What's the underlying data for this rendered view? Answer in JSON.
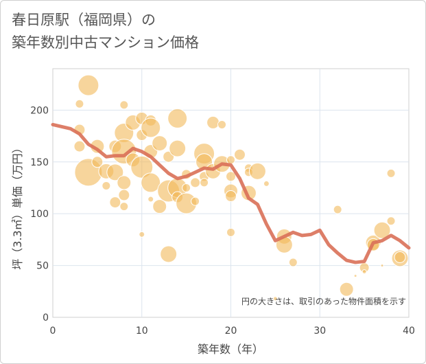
{
  "chart_data": {
    "type": "scatter",
    "title_line1": "春日原駅（福岡県）の",
    "title_line2": "築年数別中古マンション価格",
    "xlabel": "築年数（年）",
    "ylabel": "坪（3.3㎡）単価（万円）",
    "note": "円の大きさは、取引のあった物件面積を示す",
    "xlim": [
      0,
      40
    ],
    "ylim": [
      0,
      240
    ],
    "xticks": [
      0,
      10,
      20,
      30,
      40
    ],
    "yticks": [
      0,
      50,
      100,
      150,
      200
    ],
    "grid": true,
    "colors": {
      "bubble": "#f2b95a",
      "trend": "#d97058"
    },
    "bubbles": [
      {
        "x": 3,
        "y": 206,
        "s": 6
      },
      {
        "x": 3,
        "y": 181,
        "s": 8
      },
      {
        "x": 3,
        "y": 165,
        "s": 8
      },
      {
        "x": 4,
        "y": 224,
        "s": 15
      },
      {
        "x": 4,
        "y": 140,
        "s": 20
      },
      {
        "x": 5,
        "y": 165,
        "s": 10
      },
      {
        "x": 5,
        "y": 150,
        "s": 8
      },
      {
        "x": 6,
        "y": 141,
        "s": 11
      },
      {
        "x": 6,
        "y": 127,
        "s": 6
      },
      {
        "x": 7,
        "y": 165,
        "s": 9
      },
      {
        "x": 7,
        "y": 140,
        "s": 12
      },
      {
        "x": 7,
        "y": 111,
        "s": 8
      },
      {
        "x": 8,
        "y": 205,
        "s": 6
      },
      {
        "x": 8,
        "y": 178,
        "s": 14
      },
      {
        "x": 8,
        "y": 160,
        "s": 18
      },
      {
        "x": 8,
        "y": 130,
        "s": 10
      },
      {
        "x": 8,
        "y": 118,
        "s": 8
      },
      {
        "x": 8,
        "y": 107,
        "s": 6
      },
      {
        "x": 9,
        "y": 188,
        "s": 11
      },
      {
        "x": 9,
        "y": 152,
        "s": 10
      },
      {
        "x": 10,
        "y": 192,
        "s": 9
      },
      {
        "x": 10,
        "y": 176,
        "s": 8
      },
      {
        "x": 10,
        "y": 145,
        "s": 16
      },
      {
        "x": 10,
        "y": 80,
        "s": 4
      },
      {
        "x": 11,
        "y": 190,
        "s": 8
      },
      {
        "x": 11,
        "y": 183,
        "s": 14
      },
      {
        "x": 11,
        "y": 160,
        "s": 10
      },
      {
        "x": 11,
        "y": 130,
        "s": 14
      },
      {
        "x": 11,
        "y": 114,
        "s": 4
      },
      {
        "x": 12,
        "y": 168,
        "s": 11
      },
      {
        "x": 12,
        "y": 107,
        "s": 10
      },
      {
        "x": 13,
        "y": 155,
        "s": 8
      },
      {
        "x": 13,
        "y": 122,
        "s": 16
      },
      {
        "x": 13,
        "y": 61,
        "s": 12
      },
      {
        "x": 14,
        "y": 192,
        "s": 14
      },
      {
        "x": 14,
        "y": 163,
        "s": 12
      },
      {
        "x": 14,
        "y": 125,
        "s": 14
      },
      {
        "x": 14,
        "y": 116,
        "s": 8
      },
      {
        "x": 15,
        "y": 138,
        "s": 7
      },
      {
        "x": 15,
        "y": 125,
        "s": 6
      },
      {
        "x": 15,
        "y": 110,
        "s": 15
      },
      {
        "x": 16,
        "y": 112,
        "s": 6
      },
      {
        "x": 16,
        "y": 130,
        "s": 7
      },
      {
        "x": 17,
        "y": 158,
        "s": 15
      },
      {
        "x": 17,
        "y": 150,
        "s": 12
      },
      {
        "x": 17,
        "y": 136,
        "s": 7
      },
      {
        "x": 17,
        "y": 130,
        "s": 6
      },
      {
        "x": 18,
        "y": 188,
        "s": 9
      },
      {
        "x": 18,
        "y": 141,
        "s": 11
      },
      {
        "x": 19,
        "y": 186,
        "s": 6
      },
      {
        "x": 19,
        "y": 148,
        "s": 12
      },
      {
        "x": 20,
        "y": 152,
        "s": 6
      },
      {
        "x": 20,
        "y": 136,
        "s": 7
      },
      {
        "x": 20,
        "y": 122,
        "s": 10
      },
      {
        "x": 20,
        "y": 117,
        "s": 8
      },
      {
        "x": 20,
        "y": 82,
        "s": 6
      },
      {
        "x": 21,
        "y": 157,
        "s": 8
      },
      {
        "x": 22,
        "y": 144,
        "s": 6
      },
      {
        "x": 22,
        "y": 140,
        "s": 6
      },
      {
        "x": 22,
        "y": 120,
        "s": 11
      },
      {
        "x": 23,
        "y": 141,
        "s": 12
      },
      {
        "x": 24,
        "y": 129,
        "s": 4
      },
      {
        "x": 25,
        "y": 18,
        "s": 3
      },
      {
        "x": 26,
        "y": 78,
        "s": 11
      },
      {
        "x": 26,
        "y": 70,
        "s": 12
      },
      {
        "x": 27,
        "y": 53,
        "s": 6
      },
      {
        "x": 32,
        "y": 104,
        "s": 6
      },
      {
        "x": 33,
        "y": 27,
        "s": 10
      },
      {
        "x": 34,
        "y": 40,
        "s": 2
      },
      {
        "x": 35,
        "y": 48,
        "s": 7
      },
      {
        "x": 35,
        "y": 44,
        "s": 3
      },
      {
        "x": 36,
        "y": 72,
        "s": 11
      },
      {
        "x": 36,
        "y": 70,
        "s": 9
      },
      {
        "x": 37,
        "y": 84,
        "s": 12
      },
      {
        "x": 37,
        "y": 50,
        "s": 2
      },
      {
        "x": 38,
        "y": 139,
        "s": 6
      },
      {
        "x": 38,
        "y": 93,
        "s": 6
      },
      {
        "x": 39,
        "y": 57,
        "s": 12
      },
      {
        "x": 39,
        "y": 58,
        "s": 8
      }
    ],
    "trend": {
      "x": [
        0,
        2,
        3,
        4,
        5,
        6,
        7,
        8,
        9,
        10,
        11,
        12,
        13,
        14,
        15,
        16,
        17,
        18,
        19,
        20,
        21,
        22,
        23,
        24,
        25,
        26,
        27,
        28,
        29,
        30,
        31,
        32,
        33,
        34,
        35,
        36,
        37,
        38,
        39,
        40
      ],
      "y": [
        186,
        182,
        177,
        167,
        162,
        155,
        156,
        156,
        163,
        160,
        155,
        147,
        139,
        134,
        136,
        140,
        144,
        143,
        148,
        147,
        134,
        115,
        109,
        90,
        74,
        78,
        82,
        79,
        80,
        84,
        70,
        62,
        55,
        53,
        54,
        72,
        74,
        79,
        74,
        67
      ]
    }
  }
}
